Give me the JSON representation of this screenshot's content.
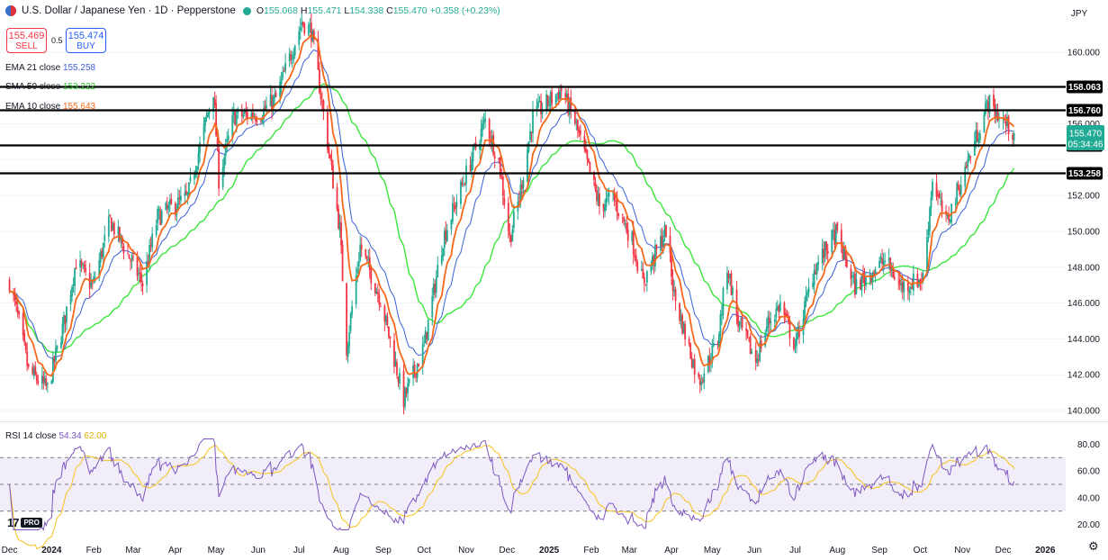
{
  "header": {
    "symbol": "U.S. Dollar / Japanese Yen · 1D · Pepperstone",
    "o_label": "O",
    "o": "155.068",
    "h_label": "H",
    "h": "155.471",
    "l_label": "L",
    "l": "154.338",
    "c_label": "C",
    "c": "155.470",
    "change": "+0.358 (+0.23%)"
  },
  "trade": {
    "sell_price": "155.469",
    "sell_label": "SELL",
    "buy_price": "155.474",
    "buy_label": "BUY",
    "spread": "0.5"
  },
  "currency": "JPY",
  "indicators": {
    "ema21_label": "EMA 21 close",
    "ema21_value": "155.258",
    "sma50_label": "SMA 50 close",
    "sma50_value": "153.222",
    "ema10_label": "EMA 10 close",
    "ema10_value": "155.643",
    "rsi_label": "RSI 14 close",
    "rsi_value": "54.34",
    "rsi_ma_value": "62.00"
  },
  "logo": {
    "text": "17",
    "badge": "PRO"
  },
  "colors": {
    "up": "#22ab94",
    "down": "#f23645",
    "ema10": "#f7681a",
    "ema21": "#3b5fd9",
    "sma50": "#3ce63c",
    "rsi": "#7e57c2",
    "rsi_ma": "#f7c21a"
  },
  "chart_data": [
    {
      "type": "candlestick",
      "title": "U.S. Dollar / Japanese Yen · 1D · Pepperstone",
      "ylim": [
        139.4,
        161.8
      ],
      "y_ticks": [
        "140.000",
        "142.000",
        "144.000",
        "146.000",
        "148.000",
        "150.000",
        "152.000",
        "156.000",
        "160.000"
      ],
      "x_ticks": [
        "Dec",
        "2024",
        "Feb",
        "Mar",
        "Apr",
        "May",
        "Jun",
        "Jul",
        "Aug",
        "Sep",
        "Oct",
        "Nov",
        "Dec",
        "2025",
        "Feb",
        "Mar",
        "Apr",
        "May",
        "Jun",
        "Jul",
        "Aug",
        "Sep",
        "Oct",
        "Nov",
        "Dec",
        "2026"
      ],
      "anchors": [
        {
          "date": "2023-12-01",
          "price": 147.2
        },
        {
          "date": "2023-12-08",
          "price": 144.9
        },
        {
          "date": "2023-12-15",
          "price": 142.2
        },
        {
          "date": "2023-12-29",
          "price": 141.2
        },
        {
          "date": "2024-01-10",
          "price": 144.9
        },
        {
          "date": "2024-01-19",
          "price": 148.3
        },
        {
          "date": "2024-01-31",
          "price": 146.9
        },
        {
          "date": "2024-02-13",
          "price": 150.6
        },
        {
          "date": "2024-03-08",
          "price": 147.1
        },
        {
          "date": "2024-03-19",
          "price": 150.8
        },
        {
          "date": "2024-04-10",
          "price": 151.9
        },
        {
          "date": "2024-04-29",
          "price": 157.9
        },
        {
          "date": "2024-05-03",
          "price": 152.9
        },
        {
          "date": "2024-05-14",
          "price": 156.4
        },
        {
          "date": "2024-06-03",
          "price": 156.6
        },
        {
          "date": "2024-06-14",
          "price": 157.4
        },
        {
          "date": "2024-07-03",
          "price": 161.7
        },
        {
          "date": "2024-07-10",
          "price": 161.2
        },
        {
          "date": "2024-07-18",
          "price": 157.1
        },
        {
          "date": "2024-07-31",
          "price": 150.1
        },
        {
          "date": "2024-08-05",
          "price": 143.5
        },
        {
          "date": "2024-08-15",
          "price": 149.2
        },
        {
          "date": "2024-08-30",
          "price": 146.2
        },
        {
          "date": "2024-09-16",
          "price": 140.6
        },
        {
          "date": "2024-10-01",
          "price": 143.6
        },
        {
          "date": "2024-10-15",
          "price": 149.6
        },
        {
          "date": "2024-11-15",
          "price": 156.2
        },
        {
          "date": "2024-11-25",
          "price": 153.9
        },
        {
          "date": "2024-12-03",
          "price": 149.6
        },
        {
          "date": "2024-12-10",
          "price": 151.9
        },
        {
          "date": "2024-12-20",
          "price": 156.4
        },
        {
          "date": "2025-01-10",
          "price": 157.9
        },
        {
          "date": "2025-01-20",
          "price": 156.1
        },
        {
          "date": "2025-02-07",
          "price": 151.4
        },
        {
          "date": "2025-02-17",
          "price": 151.9
        },
        {
          "date": "2025-03-03",
          "price": 149.5
        },
        {
          "date": "2025-03-11",
          "price": 147.1
        },
        {
          "date": "2025-03-28",
          "price": 150.1
        },
        {
          "date": "2025-04-03",
          "price": 146.4
        },
        {
          "date": "2025-04-21",
          "price": 141.6
        },
        {
          "date": "2025-05-05",
          "price": 143.9
        },
        {
          "date": "2025-05-12",
          "price": 148.1
        },
        {
          "date": "2025-05-20",
          "price": 144.9
        },
        {
          "date": "2025-06-02",
          "price": 142.8
        },
        {
          "date": "2025-06-11",
          "price": 144.9
        },
        {
          "date": "2025-06-20",
          "price": 145.9
        },
        {
          "date": "2025-07-01",
          "price": 143.6
        },
        {
          "date": "2025-07-15",
          "price": 147.9
        },
        {
          "date": "2025-07-31",
          "price": 149.9
        },
        {
          "date": "2025-08-14",
          "price": 146.9
        },
        {
          "date": "2025-09-05",
          "price": 148.4
        },
        {
          "date": "2025-09-17",
          "price": 146.9
        },
        {
          "date": "2025-10-03",
          "price": 147.4
        },
        {
          "date": "2025-10-10",
          "price": 152.9
        },
        {
          "date": "2025-10-20",
          "price": 150.4
        },
        {
          "date": "2025-11-05",
          "price": 153.9
        },
        {
          "date": "2025-11-20",
          "price": 157.2
        },
        {
          "date": "2025-11-28",
          "price": 156.4
        },
        {
          "date": "2025-12-09",
          "price": 155.47
        }
      ],
      "series": [
        {
          "name": "EMA 10 close",
          "last": 155.643
        },
        {
          "name": "EMA 21 close",
          "last": 155.258
        },
        {
          "name": "SMA 50 close",
          "last": 153.222
        }
      ],
      "horizontal_levels": [
        158.063,
        156.76,
        154.805,
        153.258
      ],
      "last_price": {
        "value": "155.470",
        "countdown": "05:34:46"
      }
    },
    {
      "type": "line",
      "title": "RSI 14 close",
      "ylim": [
        15,
        85
      ],
      "y_ticks": [
        "20.00",
        "40.00",
        "60.00",
        "80.00"
      ],
      "bands": [
        30,
        70
      ],
      "series": [
        {
          "name": "RSI 14 close",
          "last": 54.34
        },
        {
          "name": "RSI-based MA",
          "last": 62.0
        }
      ]
    }
  ]
}
